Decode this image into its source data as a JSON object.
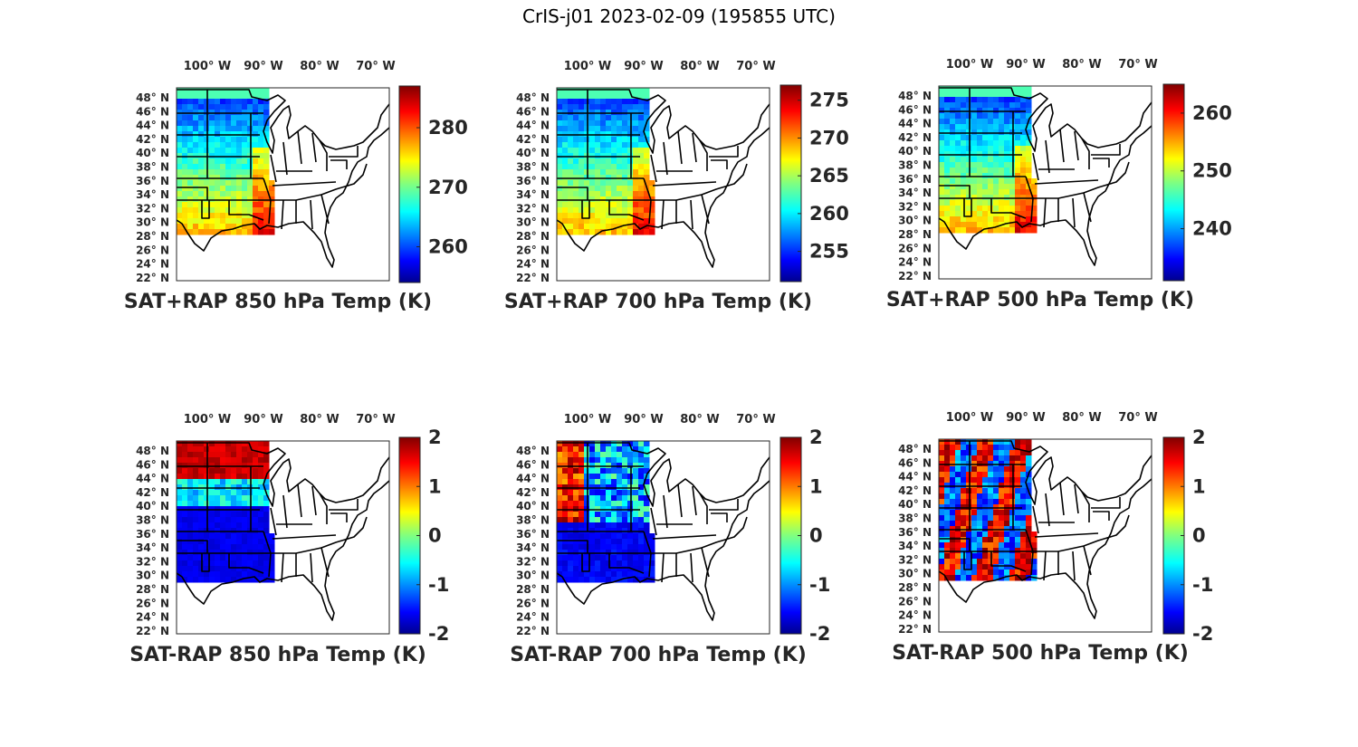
{
  "title": "CrIS-j01 2023-02-09 (195855 UTC)",
  "lon_labels": [
    "100° W",
    "90° W",
    "80° W",
    "70° W"
  ],
  "lat_labels": [
    "48° N",
    "46° N",
    "44° N",
    "42° N",
    "40° N",
    "38° N",
    "36° N",
    "34° N",
    "32° N",
    "30° N",
    "28° N",
    "26° N",
    "24° N",
    "22° N"
  ],
  "colormap": "jet",
  "panels": [
    {
      "title": "SAT+RAP 850 hPa Temp (K)",
      "type": "sum",
      "clim": [
        254,
        287
      ],
      "ticks": [
        "280",
        "270",
        "260"
      ],
      "tick_values": [
        280,
        270,
        260
      ]
    },
    {
      "title": "SAT+RAP 700 hPa Temp (K)",
      "type": "sum",
      "clim": [
        251,
        277
      ],
      "ticks": [
        "275",
        "270",
        "265",
        "260",
        "255"
      ],
      "tick_values": [
        275,
        270,
        265,
        260,
        255
      ]
    },
    {
      "title": "SAT+RAP 500 hPa Temp (K)",
      "type": "sum",
      "clim": [
        231,
        265
      ],
      "ticks": [
        "260",
        "250",
        "240"
      ],
      "tick_values": [
        260,
        250,
        240
      ]
    },
    {
      "title": "SAT-RAP 850 hPa Temp (K)",
      "type": "diff",
      "clim": [
        -2,
        2
      ],
      "ticks": [
        "2",
        "1",
        "0",
        "-1",
        "-2"
      ],
      "tick_values": [
        2,
        1,
        0,
        -1,
        -2
      ]
    },
    {
      "title": "SAT-RAP 700 hPa Temp (K)",
      "type": "diff",
      "clim": [
        -2,
        2
      ],
      "ticks": [
        "2",
        "1",
        "0",
        "-1",
        "-2"
      ],
      "tick_values": [
        2,
        1,
        0,
        -1,
        -2
      ]
    },
    {
      "title": "SAT-RAP 500 hPa Temp (K)",
      "type": "diff",
      "clim": [
        -2,
        2
      ],
      "ticks": [
        "2",
        "1",
        "0",
        "-1",
        "-2"
      ],
      "tick_values": [
        2,
        1,
        0,
        -1,
        -2
      ]
    }
  ]
}
